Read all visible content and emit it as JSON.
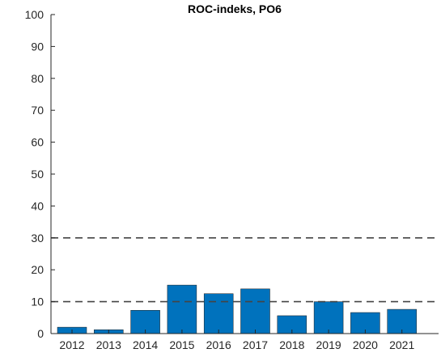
{
  "chart_data": {
    "type": "bar",
    "title": "ROC-indeks, PO6",
    "xlabel": "",
    "ylabel": "",
    "categories": [
      "2012",
      "2013",
      "2014",
      "2015",
      "2016",
      "2017",
      "2018",
      "2019",
      "2020",
      "2021"
    ],
    "values": [
      2,
      1.2,
      7.3,
      15.2,
      12.5,
      14,
      5.6,
      10,
      6.6,
      7.6
    ],
    "ylim": [
      0,
      100
    ],
    "yticks": [
      0,
      10,
      20,
      30,
      40,
      50,
      60,
      70,
      80,
      90,
      100
    ],
    "reference_lines": [
      {
        "y": 30,
        "style": "dashed"
      },
      {
        "y": 10,
        "style": "dashed"
      }
    ],
    "bar_color": "#0072BD",
    "grid": false,
    "legend": "none"
  }
}
